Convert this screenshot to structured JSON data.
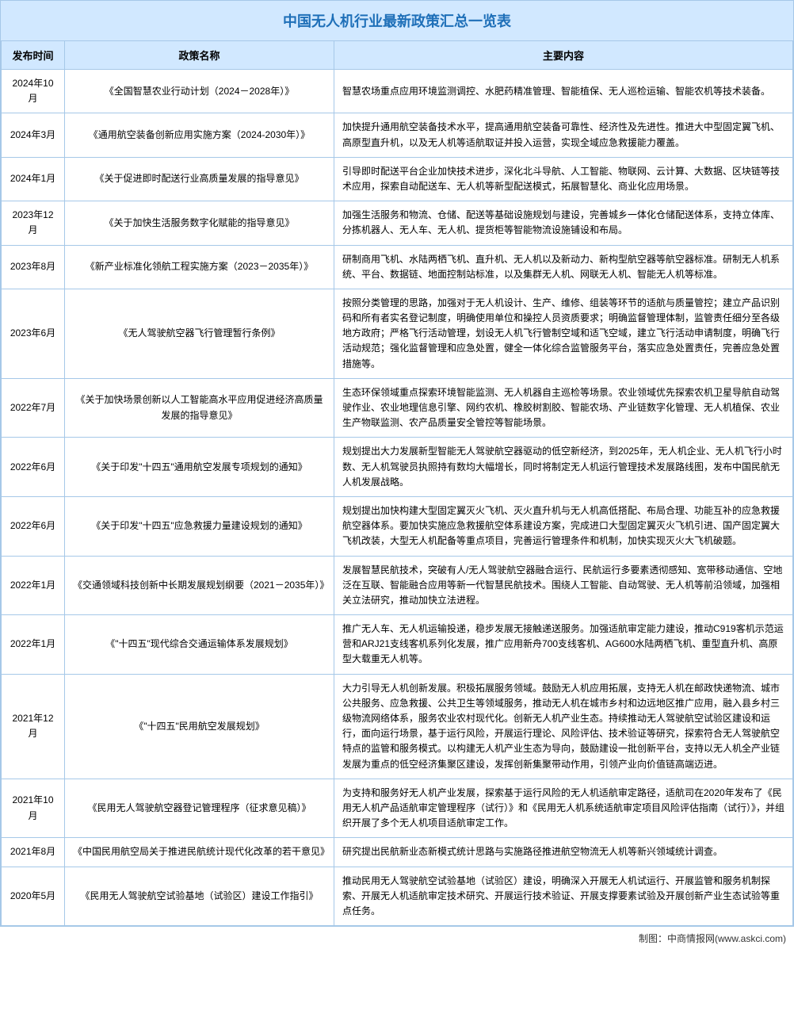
{
  "title": "中国无人机行业最新政策汇总一览表",
  "columns": [
    "发布时间",
    "政策名称",
    "主要内容"
  ],
  "rows": [
    {
      "date": "2024年10月",
      "policy": "《全国智慧农业行动计划（2024－2028年）》",
      "content": "智慧农场重点应用环境监测调控、水肥药精准管理、智能植保、无人巡检运输、智能农机等技术装备。"
    },
    {
      "date": "2024年3月",
      "policy": "《通用航空装备创新应用实施方案（2024-2030年）》",
      "content": "加快提升通用航空装备技术水平，提高通用航空装备可靠性、经济性及先进性。推进大中型固定翼飞机、高原型直升机，以及无人机等适航取证并投入运营，实现全域应急救援能力覆盖。"
    },
    {
      "date": "2024年1月",
      "policy": "《关于促进即时配送行业高质量发展的指导意见》",
      "content": "引导即时配送平台企业加快技术进步，深化北斗导航、人工智能、物联网、云计算、大数据、区块链等技术应用，探索自动配送车、无人机等新型配送模式，拓展智慧化、商业化应用场景。"
    },
    {
      "date": "2023年12月",
      "policy": "《关于加快生活服务数字化赋能的指导意见》",
      "content": "加强生活服务和物流、仓储、配送等基础设施规划与建设，完善城乡一体化仓储配送体系，支持立体库、分拣机器人、无人车、无人机、提货柜等智能物流设施铺设和布局。"
    },
    {
      "date": "2023年8月",
      "policy": "《新产业标准化领航工程实施方案（2023－2035年）》",
      "content": "研制商用飞机、水陆两栖飞机、直升机、无人机以及新动力、新构型航空器等航空器标准。研制无人机系统、平台、数据链、地面控制站标准，以及集群无人机、网联无人机、智能无人机等标准。"
    },
    {
      "date": "2023年6月",
      "policy": "《无人驾驶航空器飞行管理暂行条例》",
      "content": "按照分类管理的思路，加强对于无人机设计、生产、维修、组装等环节的适航与质量管控；建立产品识别码和所有者实名登记制度，明确使用单位和操控人员资质要求；明确监督管理体制，监管责任细分至各级地方政府；严格飞行活动管理，划设无人机飞行管制空域和适飞空域，建立飞行活动申请制度，明确飞行活动规范；强化监督管理和应急处置，健全一体化综合监管服务平台，落实应急处置责任，完善应急处置措施等。"
    },
    {
      "date": "2022年7月",
      "policy": "《关于加快场景创新以人工智能高水平应用促进经济高质量发展的指导意见》",
      "content": "生态环保领域重点探索环境智能监测、无人机器自主巡检等场景。农业领域优先探索农机卫星导航自动驾驶作业、农业地理信息引擎、网约农机、橡胶树割胶、智能农场、产业链数字化管理、无人机植保、农业生产物联监测、农产品质量安全管控等智能场景。"
    },
    {
      "date": "2022年6月",
      "policy": "《关于印发\"十四五\"通用航空发展专项规划的通知》",
      "content": "规划提出大力发展新型智能无人驾驶航空器驱动的低空新经济，到2025年，无人机企业、无人机飞行小时数、无人机驾驶员执照持有数均大幅增长，同时将制定无人机运行管理技术发展路线图，发布中国民航无人机发展战略。"
    },
    {
      "date": "2022年6月",
      "policy": "《关于印发\"十四五\"应急救援力量建设规划的通知》",
      "content": "规划提出加快构建大型固定翼灭火飞机、灭火直升机与无人机高低搭配、布局合理、功能互补的应急救援航空器体系。要加快实施应急救援航空体系建设方案，完成进口大型固定翼灭火飞机引进、国产固定翼大飞机改装，大型无人机配备等重点项目，完善运行管理条件和机制，加快实现灭火大飞机破题。"
    },
    {
      "date": "2022年1月",
      "policy": "《交通领域科技创新中长期发展规划纲要（2021－2035年）》",
      "content": "发展智慧民航技术，突破有人/无人驾驶航空器融合运行、民航运行多要素透彻感知、宽带移动通信、空地泛在互联、智能融合应用等新一代智慧民航技术。围绕人工智能、自动驾驶、无人机等前沿领域，加强相关立法研究，推动加快立法进程。"
    },
    {
      "date": "2022年1月",
      "policy": "《\"十四五\"现代综合交通运输体系发展规划》",
      "content": "推广无人车、无人机运输投递，稳步发展无接触递送服务。加强适航审定能力建设，推动C919客机示范运营和ARJ21支线客机系列化发展，推广应用新舟700支线客机、AG600水陆两栖飞机、重型直升机、高原型大载重无人机等。"
    },
    {
      "date": "2021年12月",
      "policy": "《\"十四五\"民用航空发展规划》",
      "content": "大力引导无人机创新发展。积极拓展服务领域。鼓励无人机应用拓展，支持无人机在邮政快递物流、城市公共服务、应急救援、公共卫生等领域服务，推动无人机在城市乡村和边远地区推广应用，融入县乡村三级物流网络体系，服务农业农村现代化。创新无人机产业生态。持续推动无人驾驶航空试验区建设和运行，面向运行场景，基于运行风险，开展运行理论、风险评估、技术验证等研究，探索符合无人驾驶航空特点的监管和服务模式。以构建无人机产业生态为导向，鼓励建设一批创新平台，支持以无人机全产业链发展为重点的低空经济集聚区建设，发挥创新集聚带动作用，引领产业向价值链高端迈进。"
    },
    {
      "date": "2021年10月",
      "policy": "《民用无人驾驶航空器登记管理程序（征求意见稿）》",
      "content": "为支持和服务好无人机产业发展，探索基于运行风险的无人机适航审定路径，适航司在2020年发布了《民用无人机产品适航审定管理程序（试行）》和《民用无人机系统适航审定项目风险评估指南（试行）》，并组织开展了多个无人机项目适航审定工作。"
    },
    {
      "date": "2021年8月",
      "policy": "《中国民用航空局关于推进民航统计现代化改革的若干意见》",
      "content": "研究提出民航新业态新模式统计思路与实施路径推进航空物流无人机等新兴领域统计调查。"
    },
    {
      "date": "2020年5月",
      "policy": "《民用无人驾驶航空试验基地（试验区）建设工作指引》",
      "content": "推动民用无人驾驶航空试验基地（试验区）建设，明确深入开展无人机试运行、开展监管和服务机制探索、开展无人机适航审定技术研究、开展运行技术验证、开展支撑要素试验及开展创新产业生态试验等重点任务。"
    }
  ],
  "footer": "制图：中商情报网(www.askci.com)"
}
